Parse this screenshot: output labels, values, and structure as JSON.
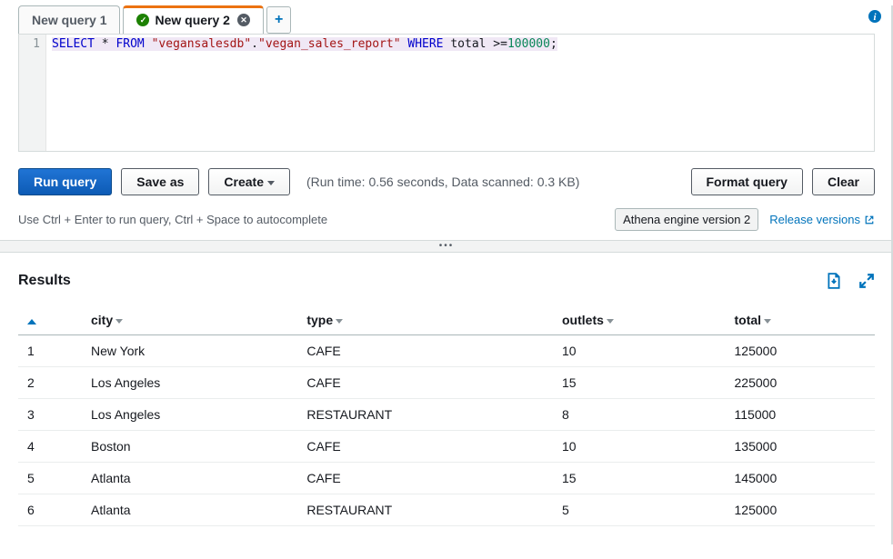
{
  "tabs": [
    {
      "label": "New query 1",
      "active": false,
      "success": false
    },
    {
      "label": "New query 2",
      "active": true,
      "success": true
    }
  ],
  "editor": {
    "line_number": "1",
    "sql": {
      "kw1": "SELECT",
      "star": " * ",
      "kw2": "FROM",
      "sp1": " ",
      "str1": "\"vegansalesdb\"",
      "dot": ".",
      "str2": "\"vegan_sales_report\"",
      "sp2": " ",
      "kw3": "WHERE",
      "rest": " total >=",
      "num": "100000",
      "semi": ";"
    }
  },
  "buttons": {
    "run": "Run query",
    "save_as": "Save as",
    "create": "Create",
    "format": "Format query",
    "clear": "Clear"
  },
  "run_info": "(Run time: 0.56 seconds, Data scanned: 0.3 KB)",
  "hint": "Use Ctrl + Enter to run query, Ctrl + Space to autocomplete",
  "engine_badge": "Athena engine version 2",
  "release_link": "Release versions",
  "results": {
    "title": "Results",
    "columns": [
      "city",
      "type",
      "outlets",
      "total"
    ],
    "rows": [
      [
        "1",
        "New York",
        "CAFE",
        "10",
        "125000"
      ],
      [
        "2",
        "Los Angeles",
        "CAFE",
        "15",
        "225000"
      ],
      [
        "3",
        "Los Angeles",
        "RESTAURANT",
        "8",
        "115000"
      ],
      [
        "4",
        "Boston",
        "CAFE",
        "10",
        "135000"
      ],
      [
        "5",
        "Atlanta",
        "CAFE",
        "15",
        "145000"
      ],
      [
        "6",
        "Atlanta",
        "RESTAURANT",
        "5",
        "125000"
      ]
    ]
  }
}
